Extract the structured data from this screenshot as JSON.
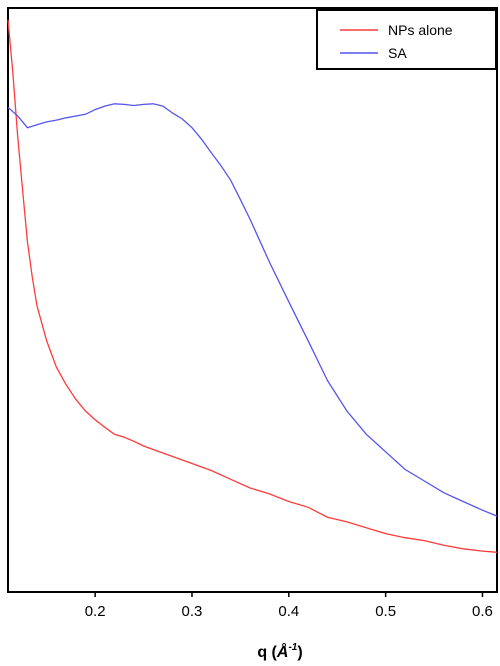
{
  "chart_data": {
    "type": "line",
    "xlabel_main": "q (",
    "xlabel_unit": "Å",
    "xlabel_sup": "-1",
    "xlabel_close": ")",
    "xlim": [
      0.11,
      0.615
    ],
    "ylim": [
      0,
      1
    ],
    "xticks": [
      0.2,
      0.3,
      0.4,
      0.5,
      0.6
    ],
    "xtick_labels": [
      "0.2",
      "0.3",
      "0.4",
      "0.5",
      "0.6"
    ],
    "y_axis_labels_shown": false,
    "grid": false,
    "legend_position": "top-right",
    "series": [
      {
        "name": "NPs alone",
        "color": "#ff3b3b",
        "x": [
          0.11,
          0.115,
          0.12,
          0.125,
          0.13,
          0.135,
          0.14,
          0.15,
          0.16,
          0.17,
          0.18,
          0.19,
          0.2,
          0.21,
          0.22,
          0.23,
          0.24,
          0.25,
          0.26,
          0.27,
          0.28,
          0.3,
          0.32,
          0.34,
          0.36,
          0.38,
          0.4,
          0.42,
          0.44,
          0.46,
          0.48,
          0.5,
          0.52,
          0.54,
          0.56,
          0.58,
          0.6,
          0.615
        ],
        "y": [
          0.98,
          0.89,
          0.78,
          0.69,
          0.6,
          0.54,
          0.49,
          0.43,
          0.385,
          0.355,
          0.33,
          0.31,
          0.295,
          0.282,
          0.27,
          0.265,
          0.258,
          0.25,
          0.244,
          0.238,
          0.232,
          0.22,
          0.208,
          0.193,
          0.178,
          0.168,
          0.155,
          0.145,
          0.128,
          0.12,
          0.11,
          0.1,
          0.093,
          0.088,
          0.08,
          0.074,
          0.07,
          0.068
        ]
      },
      {
        "name": "SA",
        "color": "#5555ee",
        "x": [
          0.11,
          0.12,
          0.13,
          0.14,
          0.15,
          0.16,
          0.17,
          0.18,
          0.19,
          0.2,
          0.21,
          0.22,
          0.23,
          0.24,
          0.25,
          0.26,
          0.27,
          0.28,
          0.29,
          0.3,
          0.31,
          0.32,
          0.33,
          0.34,
          0.35,
          0.36,
          0.38,
          0.4,
          0.42,
          0.44,
          0.46,
          0.48,
          0.5,
          0.52,
          0.54,
          0.56,
          0.58,
          0.6,
          0.615
        ],
        "y": [
          0.83,
          0.815,
          0.795,
          0.8,
          0.805,
          0.808,
          0.812,
          0.815,
          0.818,
          0.826,
          0.832,
          0.836,
          0.835,
          0.833,
          0.835,
          0.836,
          0.832,
          0.82,
          0.81,
          0.795,
          0.775,
          0.752,
          0.73,
          0.705,
          0.672,
          0.638,
          0.565,
          0.497,
          0.43,
          0.362,
          0.31,
          0.27,
          0.24,
          0.21,
          0.19,
          0.17,
          0.155,
          0.14,
          0.13
        ]
      }
    ]
  }
}
